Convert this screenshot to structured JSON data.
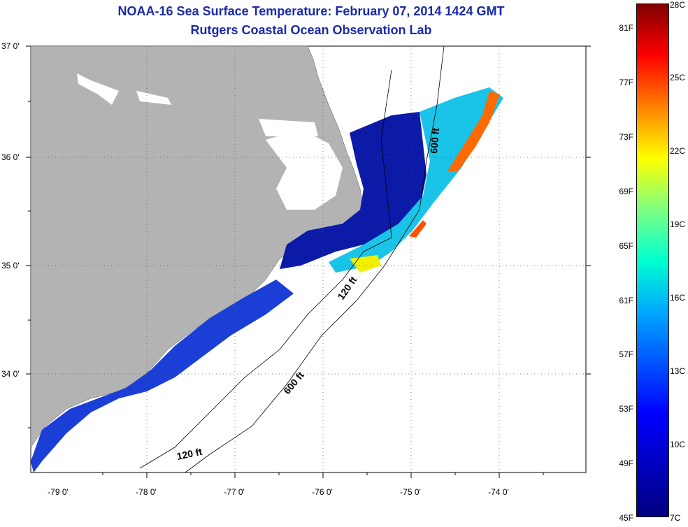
{
  "header": {
    "title": "NOAA-16 Sea Surface Temperature:  February 07, 2014 1424 GMT",
    "subtitle": "Rutgers Coastal Ocean Observation Lab"
  },
  "map": {
    "lat_labels": [
      "37 0'",
      "36 0'",
      "35 0'",
      "34 0'"
    ],
    "lon_labels": [
      "-79 0'",
      "-78 0'",
      "-77 0'",
      "-76 0'",
      "-75 0'",
      "-74 0'"
    ],
    "contour_labels": [
      "600 ft",
      "120 ft",
      "600 ft",
      "120 ft"
    ],
    "land_color": "#b3b3b3",
    "water_color": "#ffffff"
  },
  "colorbar": {
    "fahrenheit": [
      "81F",
      "77F",
      "73F",
      "69F",
      "65F",
      "61F",
      "57F",
      "53F",
      "49F",
      "45F"
    ],
    "celsius": [
      "28C",
      "25C",
      "22C",
      "19C",
      "16C",
      "13C",
      "10C",
      "7C"
    ]
  }
}
